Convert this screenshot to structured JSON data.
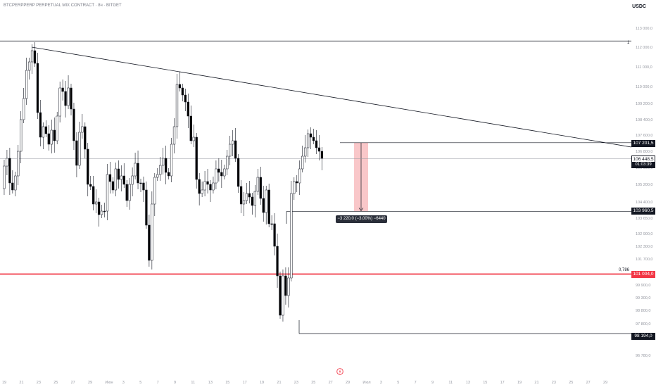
{
  "header": {
    "symbol_title": "BTCPERPPERP PERPETUAL MIX CONTRACT · 8ч · BITGET",
    "currency": "USDC"
  },
  "price_tags": {
    "top_level": "107 201,5",
    "current": "106 448,5",
    "countdown": "01:03:39",
    "target": "103 960,5",
    "fib_level": "101 004,0",
    "low": "98 194,0"
  },
  "annotations": {
    "one_label": "1",
    "fib_label": "0,786",
    "measure": "−3 220,0 (−3,00%) −6440"
  },
  "colors": {
    "up_candle": "#ffffff",
    "down_candle": "#000000",
    "fib_line": "#f23645",
    "measure_fill": "#f9c7c9",
    "text": "#131722"
  },
  "chart_data": {
    "type": "candlestick",
    "y_ticks": [
      "113 000,0",
      "112 000,0",
      "111 000,0",
      "110 000,0",
      "109 200,0",
      "108 400,0",
      "107 600,0",
      "106 800,0",
      "106 000,0",
      "105 200,0",
      "104 400,0",
      "103 650,0",
      "102 900,0",
      "102 300,0",
      "101 700,0",
      "100 800,0",
      "99 900,0",
      "99 300,0",
      "98 800,0",
      "97 800,0",
      "97 280,0",
      "96 780,0"
    ],
    "x_ticks": [
      "19",
      "21",
      "23",
      "25",
      "27",
      "29",
      "Июн",
      "3",
      "5",
      "7",
      "9",
      "11",
      "13",
      "15",
      "17",
      "19",
      "21",
      "23",
      "25",
      "27",
      "29",
      "Июл",
      "3",
      "5",
      "7",
      "9",
      "11",
      "13",
      "15",
      "17",
      "19",
      "21",
      "23",
      "25",
      "27",
      "29"
    ],
    "levels": [
      {
        "price": 112000,
        "label": "1"
      },
      {
        "price": 107201.5
      },
      {
        "price": 106448.5
      },
      {
        "price": 103960.5
      },
      {
        "price": 101004.0,
        "label": "0,786"
      },
      {
        "price": 98194.0
      }
    ]
  }
}
